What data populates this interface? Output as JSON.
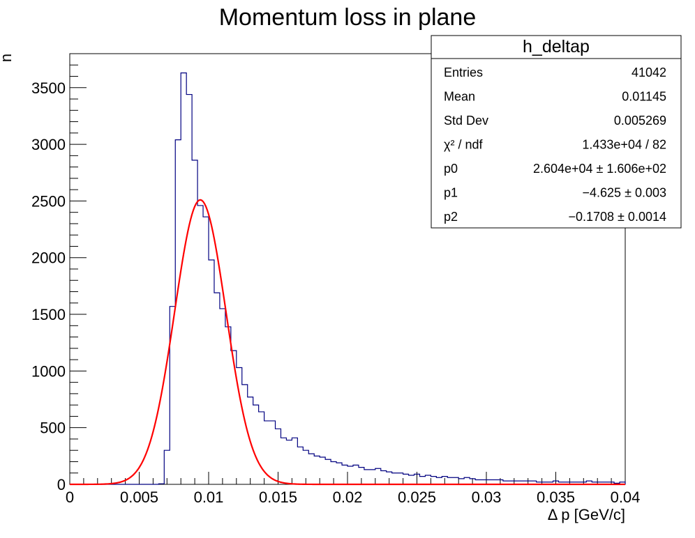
{
  "chart_data": {
    "type": "bar",
    "title": "Momentum loss in plane",
    "xlabel": "Δ p [GeV/c]",
    "ylabel": "n",
    "xlim": [
      0,
      0.04
    ],
    "ylim": [
      0,
      3800
    ],
    "bin_width": 0.0004,
    "x_ticks": [
      {
        "value": 0,
        "label": "0"
      },
      {
        "value": 0.005,
        "label": "0.005"
      },
      {
        "value": 0.01,
        "label": "0.01"
      },
      {
        "value": 0.015,
        "label": "0.015"
      },
      {
        "value": 0.02,
        "label": "0.02"
      },
      {
        "value": 0.025,
        "label": "0.025"
      },
      {
        "value": 0.03,
        "label": "0.03"
      },
      {
        "value": 0.035,
        "label": "0.035"
      },
      {
        "value": 0.04,
        "label": "0.04"
      }
    ],
    "y_ticks": [
      {
        "value": 0,
        "label": "0"
      },
      {
        "value": 500,
        "label": "500"
      },
      {
        "value": 1000,
        "label": "1000"
      },
      {
        "value": 1500,
        "label": "1500"
      },
      {
        "value": 2000,
        "label": "2000"
      },
      {
        "value": 2500,
        "label": "2500"
      },
      {
        "value": 3000,
        "label": "3000"
      },
      {
        "value": 3500,
        "label": "3500"
      }
    ],
    "series": [
      {
        "name": "h_deltap",
        "kind": "histogram",
        "color": "#000080",
        "values": [
          0,
          0,
          0,
          0,
          0,
          0,
          0,
          0,
          0,
          0,
          0,
          0,
          0,
          0,
          0,
          0,
          5,
          300,
          1570,
          3040,
          3630,
          3440,
          2860,
          2460,
          2360,
          1980,
          1690,
          1550,
          1390,
          1180,
          1030,
          880,
          770,
          700,
          640,
          560,
          560,
          490,
          410,
          390,
          410,
          330,
          300,
          270,
          250,
          240,
          220,
          200,
          190,
          170,
          160,
          170,
          150,
          130,
          130,
          140,
          120,
          110,
          100,
          100,
          90,
          80,
          90,
          70,
          80,
          70,
          60,
          70,
          60,
          60,
          50,
          60,
          50,
          40,
          40,
          40,
          40,
          40,
          30,
          30,
          30,
          30,
          30,
          30,
          20,
          20,
          20,
          30,
          20,
          20,
          20,
          20,
          20,
          30,
          20,
          20,
          20,
          20,
          10,
          20
        ]
      },
      {
        "name": "fit",
        "kind": "curve",
        "color": "#ff0000",
        "function": "p0*exp(p1 - exp(-p1)) ... Gaussian-like fit",
        "peak_x": 0.0094,
        "peak_y": 2510,
        "sigma": 0.00185
      }
    ]
  },
  "stats_box": {
    "title": "h_deltap",
    "rows": [
      {
        "label": "Entries",
        "value": "41042"
      },
      {
        "label": "Mean",
        "value": "0.01145"
      },
      {
        "label": "Std Dev",
        "value": "0.005269"
      },
      {
        "label": "χ² / ndf",
        "value": "1.433e+04 / 82"
      },
      {
        "label": "p0",
        "value": "2.604e+04  ± 1.606e+02"
      },
      {
        "label": "p1",
        "value": "−4.625 ± 0.003"
      },
      {
        "label": "p2",
        "value": "−0.1708 ± 0.0014"
      }
    ]
  },
  "colors": {
    "histogram": "#000080",
    "fit": "#ff0000",
    "axis": "#000000"
  }
}
